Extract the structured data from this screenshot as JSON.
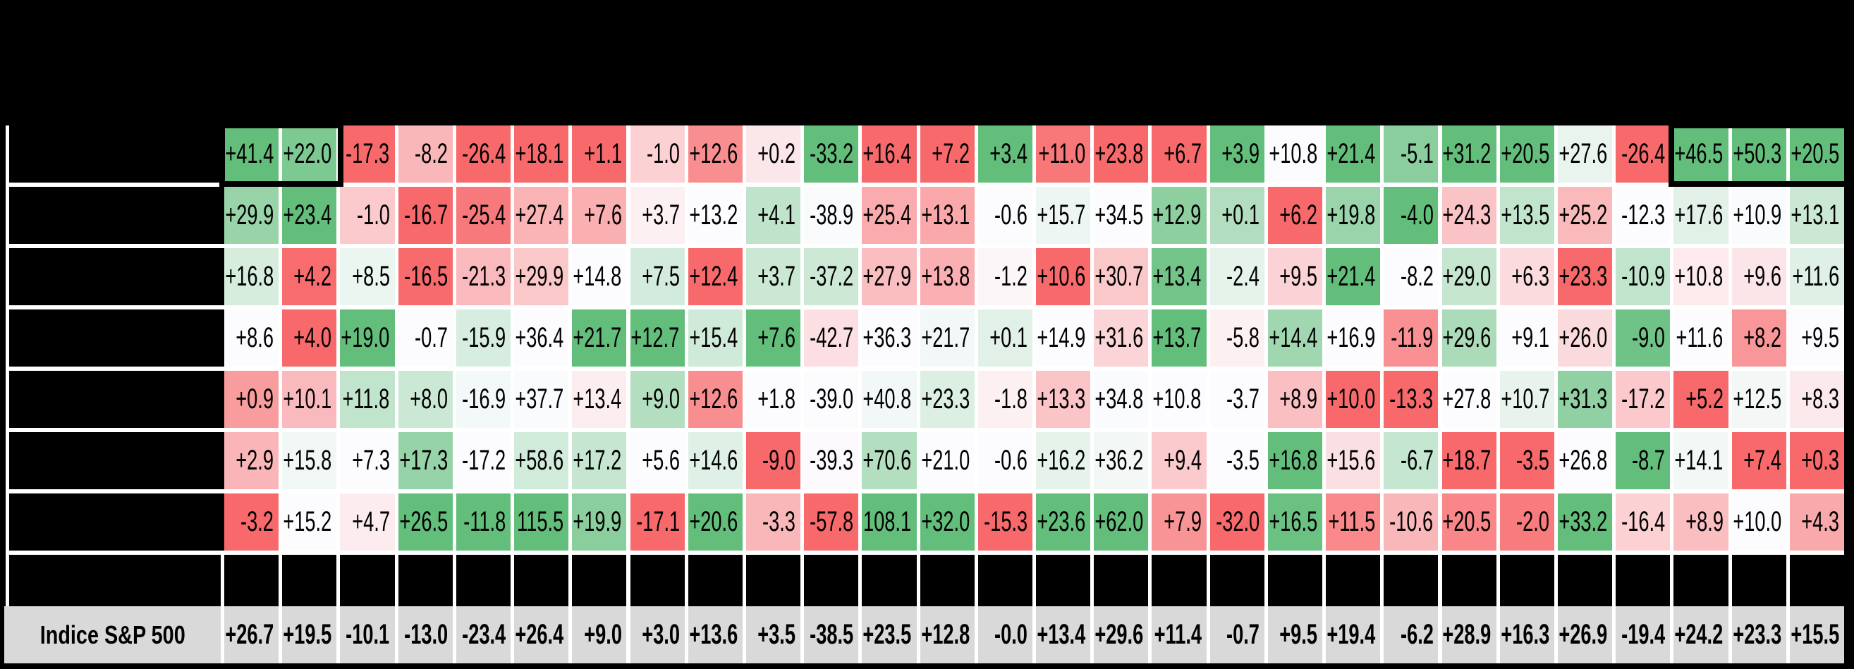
{
  "title_band": {
    "text": ""
  },
  "table": {
    "index_row": {
      "label": "Indice S&P 500",
      "values": [
        "+26.7",
        "+19.5",
        "-10.1",
        "-13.0",
        "-23.4",
        "+26.4",
        "+9.0",
        "+3.0",
        "+13.6",
        "+3.5",
        "-38.5",
        "+23.5",
        "+12.8",
        "-0.0",
        "+13.4",
        "+29.6",
        "+11.4",
        "-0.7",
        "+9.5",
        "+19.4",
        "-6.2",
        "+28.9",
        "+16.3",
        "+26.9",
        "-19.4",
        "+24.2",
        "+23.3",
        "+15.5"
      ]
    },
    "fund_rows": [
      {
        "values": [
          "+41.4",
          "+22.0",
          "-17.3",
          "-8.2",
          "-26.4",
          "+18.1",
          "+1.1",
          "-1.0",
          "+12.6",
          "+0.2",
          "-33.2",
          "+16.4",
          "+7.2",
          "+3.4",
          "+11.0",
          "+23.8",
          "+6.7",
          "+3.9",
          "+10.8",
          "+21.4",
          "-5.1",
          "+31.2",
          "+20.5",
          "+27.6",
          "-26.4",
          "+46.5",
          "+50.3",
          "+20.5"
        ]
      },
      {
        "values": [
          "+29.9",
          "+23.4",
          "-1.0",
          "-16.7",
          "-25.4",
          "+27.4",
          "+7.6",
          "+3.7",
          "+13.2",
          "+4.1",
          "-38.9",
          "+25.4",
          "+13.1",
          "-0.6",
          "+15.7",
          "+34.5",
          "+12.9",
          "+0.1",
          "+6.2",
          "+19.8",
          "-4.0",
          "+24.3",
          "+13.5",
          "+25.2",
          "-12.3",
          "+17.6",
          "+10.9",
          "+13.1"
        ]
      },
      {
        "values": [
          "+16.8",
          "+4.2",
          "+8.5",
          "-16.5",
          "-21.3",
          "+29.9",
          "+14.8",
          "+7.5",
          "+12.4",
          "+3.7",
          "-37.2",
          "+27.9",
          "+13.8",
          "-1.2",
          "+10.6",
          "+30.7",
          "+13.4",
          "-2.4",
          "+9.5",
          "+21.4",
          "-8.2",
          "+29.0",
          "+6.3",
          "+23.3",
          "-10.9",
          "+10.8",
          "+9.6",
          "+11.6"
        ]
      },
      {
        "values": [
          "+8.6",
          "+4.0",
          "+19.0",
          "-0.7",
          "-15.9",
          "+36.4",
          "+21.7",
          "+12.7",
          "+15.4",
          "+7.6",
          "-42.7",
          "+36.3",
          "+21.7",
          "+0.1",
          "+14.9",
          "+31.6",
          "+13.7",
          "-5.8",
          "+14.4",
          "+16.9",
          "-11.9",
          "+29.6",
          "+9.1",
          "+26.0",
          "-9.0",
          "+11.6",
          "+8.2",
          "+9.5"
        ]
      },
      {
        "values": [
          "+0.9",
          "+10.1",
          "+11.8",
          "+8.0",
          "-16.9",
          "+37.7",
          "+13.4",
          "+9.0",
          "+12.6",
          "+1.8",
          "-39.0",
          "+40.8",
          "+23.3",
          "-1.8",
          "+13.3",
          "+34.8",
          "+10.8",
          "-3.7",
          "+8.9",
          "+10.0",
          "-13.3",
          "+27.8",
          "+10.7",
          "+31.3",
          "-17.2",
          "+5.2",
          "+12.5",
          "+8.3"
        ]
      },
      {
        "values": [
          "+2.9",
          "+15.8",
          "+7.3",
          "+17.3",
          "-17.2",
          "+58.6",
          "+17.2",
          "+5.6",
          "+14.6",
          "-9.0",
          "-39.3",
          "+70.6",
          "+21.0",
          "-0.6",
          "+16.2",
          "+36.2",
          "+9.4",
          "-3.5",
          "+16.8",
          "+15.6",
          "-6.7",
          "+18.7",
          "-3.5",
          "+26.8",
          "-8.7",
          "+14.1",
          "+7.4",
          "+0.3"
        ]
      },
      {
        "values": [
          "-3.2",
          "+15.2",
          "+4.7",
          "+26.5",
          "-11.8",
          "115.5",
          "+19.9",
          "-17.1",
          "+20.6",
          "-3.3",
          "-57.8",
          "108.1",
          "+32.0",
          "-15.3",
          "+23.6",
          "+62.0",
          "+7.9",
          "-32.0",
          "+16.5",
          "+11.5",
          "-10.6",
          "+20.5",
          "-2.0",
          "+33.2",
          "-16.4",
          "+8.9",
          "+10.0",
          "+4.3"
        ]
      }
    ],
    "highlight_boxes": [
      {
        "row": 1,
        "from_col": 1,
        "to_col": 2
      },
      {
        "row": 1,
        "from_col": 26,
        "to_col": 28
      }
    ],
    "colors": {
      "scale_negative_extreme": "#F8696B",
      "scale_midpoint": "#FCFCFF",
      "scale_positive_extreme": "#63BE7B",
      "index_row_bg": "#D9D9D9",
      "background": "#000000",
      "grid_line": "#FFFFFF"
    }
  },
  "chart_data": {
    "type": "heatmap",
    "title": "",
    "columns_count": 28,
    "series": [
      {
        "name": "row_1",
        "values": [
          41.4,
          22.0,
          -17.3,
          -8.2,
          -26.4,
          18.1,
          1.1,
          -1.0,
          12.6,
          0.2,
          -33.2,
          16.4,
          7.2,
          3.4,
          11.0,
          23.8,
          6.7,
          3.9,
          10.8,
          21.4,
          -5.1,
          31.2,
          20.5,
          27.6,
          -26.4,
          46.5,
          50.3,
          20.5
        ]
      },
      {
        "name": "row_2",
        "values": [
          29.9,
          23.4,
          -1.0,
          -16.7,
          -25.4,
          27.4,
          7.6,
          3.7,
          13.2,
          4.1,
          -38.9,
          25.4,
          13.1,
          -0.6,
          15.7,
          34.5,
          12.9,
          0.1,
          6.2,
          19.8,
          -4.0,
          24.3,
          13.5,
          25.2,
          -12.3,
          17.6,
          10.9,
          13.1
        ]
      },
      {
        "name": "row_3",
        "values": [
          16.8,
          4.2,
          8.5,
          -16.5,
          -21.3,
          29.9,
          14.8,
          7.5,
          12.4,
          3.7,
          -37.2,
          27.9,
          13.8,
          -1.2,
          10.6,
          30.7,
          13.4,
          -2.4,
          9.5,
          21.4,
          -8.2,
          29.0,
          6.3,
          23.3,
          -10.9,
          10.8,
          9.6,
          11.6
        ]
      },
      {
        "name": "row_4",
        "values": [
          8.6,
          4.0,
          19.0,
          -0.7,
          -15.9,
          36.4,
          21.7,
          12.7,
          15.4,
          7.6,
          -42.7,
          36.3,
          21.7,
          0.1,
          14.9,
          31.6,
          13.7,
          -5.8,
          14.4,
          16.9,
          -11.9,
          29.6,
          9.1,
          26.0,
          -9.0,
          11.6,
          8.2,
          9.5
        ]
      },
      {
        "name": "row_5",
        "values": [
          0.9,
          10.1,
          11.8,
          8.0,
          -16.9,
          37.7,
          13.4,
          9.0,
          12.6,
          1.8,
          -39.0,
          40.8,
          23.3,
          -1.8,
          13.3,
          34.8,
          10.8,
          -3.7,
          8.9,
          10.0,
          -13.3,
          27.8,
          10.7,
          31.3,
          -17.2,
          5.2,
          12.5,
          8.3
        ]
      },
      {
        "name": "row_6",
        "values": [
          2.9,
          15.8,
          7.3,
          17.3,
          -17.2,
          58.6,
          17.2,
          5.6,
          14.6,
          -9.0,
          -39.3,
          70.6,
          21.0,
          -0.6,
          16.2,
          36.2,
          9.4,
          -3.5,
          16.8,
          15.6,
          -6.7,
          18.7,
          -3.5,
          26.8,
          -8.7,
          14.1,
          7.4,
          0.3
        ]
      },
      {
        "name": "row_7",
        "values": [
          -3.2,
          15.2,
          4.7,
          26.5,
          -11.8,
          115.5,
          19.9,
          -17.1,
          20.6,
          -3.3,
          -57.8,
          108.1,
          32.0,
          -15.3,
          23.6,
          62.0,
          7.9,
          -32.0,
          16.5,
          11.5,
          -10.6,
          20.5,
          -2.0,
          33.2,
          -16.4,
          8.9,
          10.0,
          4.3
        ]
      },
      {
        "name": "Indice S&P 500",
        "values": [
          26.7,
          19.5,
          -10.1,
          -13.0,
          -23.4,
          26.4,
          9.0,
          3.0,
          13.6,
          3.5,
          -38.5,
          23.5,
          12.8,
          -0.0,
          13.4,
          29.6,
          11.4,
          -0.7,
          9.5,
          19.4,
          -6.2,
          28.9,
          16.3,
          26.9,
          -19.4,
          24.2,
          23.3,
          15.5
        ]
      }
    ],
    "color_scale": {
      "min": "#F8696B",
      "mid_50th_percentile": "#FCFCFF",
      "max": "#63BE7B",
      "applied": "per-column across the 7 fund rows"
    }
  }
}
